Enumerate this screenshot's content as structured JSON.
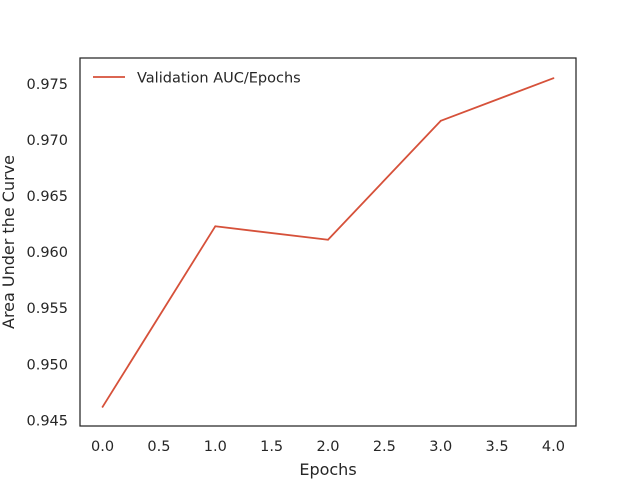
{
  "chart_data": {
    "type": "line",
    "title": "",
    "xlabel": "Epochs",
    "ylabel": "Area Under the Curve",
    "x": [
      0,
      1,
      2,
      3,
      4
    ],
    "series": [
      {
        "name": "Validation AUC/Epochs",
        "color": "#d6513a",
        "values": [
          0.9462,
          0.9623,
          0.9611,
          0.9717,
          0.9755
        ]
      }
    ],
    "xlim": [
      -0.2,
      4.2
    ],
    "ylim": [
      0.9445,
      0.9773
    ],
    "xticks": [
      0.0,
      0.5,
      1.0,
      1.5,
      2.0,
      2.5,
      3.0,
      3.5,
      4.0
    ],
    "xtick_labels": [
      "0.0",
      "0.5",
      "1.0",
      "1.5",
      "2.0",
      "2.5",
      "3.0",
      "3.5",
      "4.0"
    ],
    "yticks": [
      0.945,
      0.95,
      0.955,
      0.96,
      0.965,
      0.97,
      0.975
    ],
    "ytick_labels": [
      "0.945",
      "0.950",
      "0.955",
      "0.960",
      "0.965",
      "0.970",
      "0.975"
    ],
    "grid": false,
    "legend_position": "upper-left"
  }
}
